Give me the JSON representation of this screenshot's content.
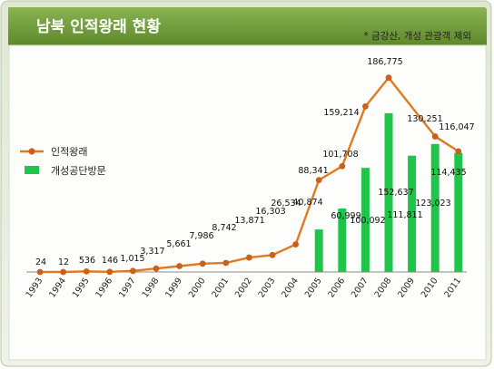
{
  "header": {
    "title": "남북 인적왕래 현황",
    "note": "* 금강산, 개성 관광객 제외"
  },
  "colors": {
    "header_band": "#6f9a3c",
    "line": "#e07a1f",
    "point": "#c9601c",
    "bar": "#1ec54a",
    "panel": "#fdfdfb",
    "frame_bg": "#e6eddc"
  },
  "chart_data": {
    "type": "bar+line",
    "categories": [
      "1993",
      "1994",
      "1995",
      "1996",
      "1997",
      "1998",
      "1999",
      "2000",
      "2001",
      "2002",
      "2003",
      "2004",
      "2005",
      "2006",
      "2007",
      "2008",
      "2009",
      "2010",
      "2011"
    ],
    "series": [
      {
        "name": "인적왕래",
        "type": "line",
        "values": [
          24,
          12,
          536,
          146,
          1015,
          3317,
          5661,
          7986,
          8742,
          13871,
          16303,
          26534,
          88341,
          101708,
          159214,
          186775,
          null,
          130251,
          116047
        ],
        "labels": [
          "24",
          "12",
          "536",
          "146",
          "1,015",
          "3,317",
          "5,661",
          "7,986",
          "8,742",
          "13,871",
          "16,303",
          "26,534",
          "88,341",
          "101,708",
          "159,214",
          "186,775",
          "",
          "130,251",
          "116,047"
        ]
      },
      {
        "name": "개성공단방문",
        "type": "bar",
        "values": [
          null,
          null,
          null,
          null,
          null,
          null,
          null,
          null,
          null,
          null,
          null,
          null,
          40874,
          60999,
          100092,
          152637,
          111811,
          123023,
          114435
        ],
        "labels": [
          "",
          "",
          "",
          "",
          "",
          "",
          "",
          "",
          "",
          "",
          "",
          "",
          "40,874",
          "60,999",
          "100,092",
          "152,637",
          "111,811",
          "123,023",
          "114,435"
        ]
      }
    ],
    "ylim": [
      0,
      190000
    ],
    "grid": false,
    "legend": "left"
  }
}
